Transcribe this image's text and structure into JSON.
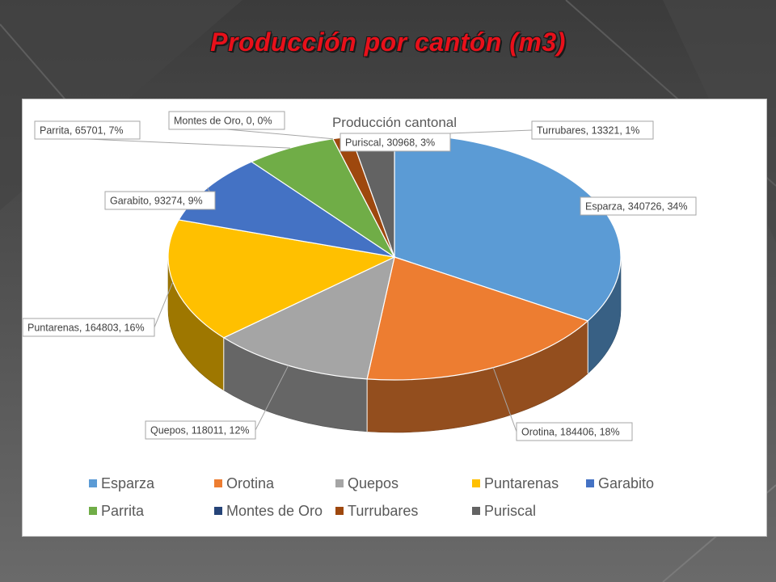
{
  "slide": {
    "title": "Producción por cantón (m3)"
  },
  "chart_data": {
    "type": "pie",
    "title": "Producción cantonal",
    "legend_position": "bottom",
    "slices": [
      {
        "name": "Esparza",
        "value": 340726,
        "percent": "34%",
        "color": "#5b9bd5",
        "label": "Esparza, 340726, 34%"
      },
      {
        "name": "Orotina",
        "value": 184406,
        "percent": "18%",
        "color": "#ed7d31",
        "label": "Orotina, 184406, 18%"
      },
      {
        "name": "Quepos",
        "value": 118011,
        "percent": "12%",
        "color": "#a5a5a5",
        "label": "Quepos, 118011, 12%"
      },
      {
        "name": "Puntarenas",
        "value": 164803,
        "percent": "16%",
        "color": "#ffc000",
        "label": "Puntarenas, 164803, 16%"
      },
      {
        "name": "Garabito",
        "value": 93274,
        "percent": "9%",
        "color": "#4472c4",
        "label": "Garabito, 93274, 9%"
      },
      {
        "name": "Parrita",
        "value": 65701,
        "percent": "7%",
        "color": "#70ad47",
        "label": "Parrita, 65701, 7%"
      },
      {
        "name": "Montes de Oro",
        "value": 0,
        "percent": "0%",
        "color": "#264478",
        "label": "Montes de Oro, 0, 0%"
      },
      {
        "name": "Turrubares",
        "value": 13321,
        "percent": "1%",
        "color": "#9e480e",
        "label": "Turrubares, 13321, 1%"
      },
      {
        "name": "Puriscal",
        "value": 30968,
        "percent": "3%",
        "color": "#636363",
        "label": "Puriscal, 30968, 3%"
      }
    ]
  }
}
